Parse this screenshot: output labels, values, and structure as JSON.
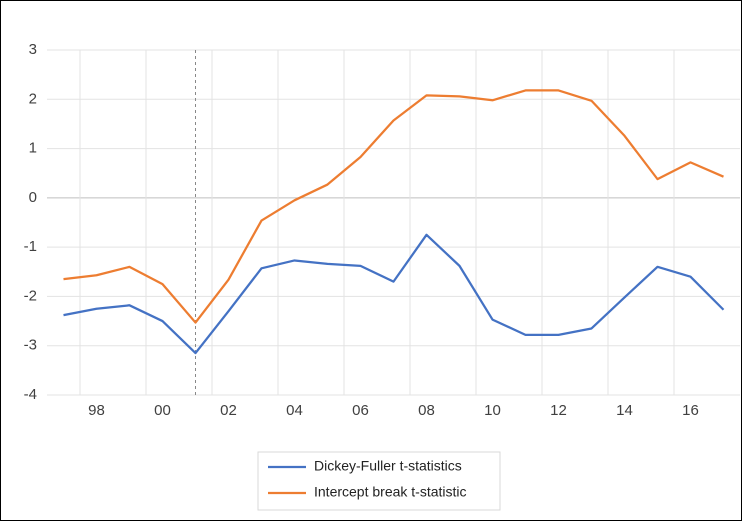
{
  "chart_data": {
    "type": "line",
    "categories": [
      null,
      "98",
      null,
      "00",
      null,
      "02",
      null,
      "04",
      null,
      "06",
      null,
      "08",
      null,
      "10",
      null,
      "12",
      null,
      "14",
      null,
      "16",
      null
    ],
    "series": [
      {
        "name": "Dickey-Fuller t-statistics",
        "color": "#4472c4",
        "values": [
          -2.38,
          -2.25,
          -2.18,
          -2.5,
          -3.15,
          -2.3,
          -1.43,
          -1.27,
          -1.34,
          -1.38,
          -1.7,
          -0.75,
          -1.38,
          -2.47,
          -2.78,
          -2.78,
          -2.65,
          -2.02,
          -1.4,
          -1.6,
          -2.27
        ]
      },
      {
        "name": "Intercept break t-statistic",
        "color": "#ed7d31",
        "values": [
          -1.65,
          -1.57,
          -1.4,
          -1.75,
          -2.53,
          -1.66,
          -0.46,
          -0.05,
          0.27,
          0.83,
          1.57,
          2.08,
          2.06,
          1.98,
          2.18,
          2.18,
          1.97,
          1.26,
          0.38,
          0.72,
          0.43
        ]
      }
    ],
    "ylim": [
      -4,
      3
    ],
    "yticks": [
      -4,
      -3,
      -2,
      -1,
      0,
      1,
      2,
      3
    ],
    "grid": true,
    "legend": "bottom"
  }
}
